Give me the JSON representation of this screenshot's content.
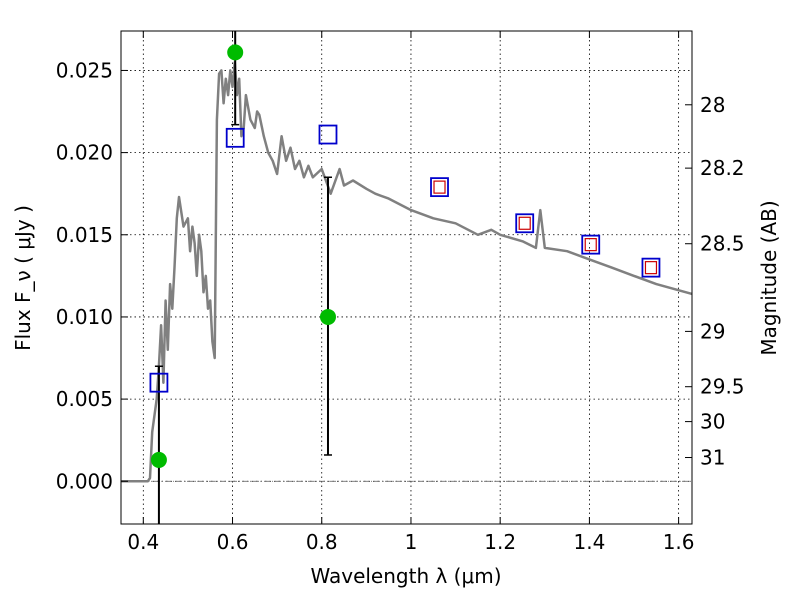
{
  "chart_data": {
    "type": "scatter",
    "xlabel": "Wavelength  λ (μm)",
    "ylabel": "Flux  F_ν  ( μJy )",
    "ylabel_right": "Magnitude (AB)",
    "xlim": [
      0.35,
      1.63
    ],
    "ylim": [
      -0.0026,
      0.0274
    ],
    "grid": true,
    "x_ticks": [
      {
        "v": 0.4,
        "label": "0.4"
      },
      {
        "v": 0.6,
        "label": "0.6"
      },
      {
        "v": 0.8,
        "label": "0.8"
      },
      {
        "v": 1.0,
        "label": "1"
      },
      {
        "v": 1.2,
        "label": "1.2"
      },
      {
        "v": 1.4,
        "label": "1.4"
      },
      {
        "v": 1.6,
        "label": "1.6"
      }
    ],
    "y_ticks": [
      {
        "v": 0.0,
        "label": "0.000"
      },
      {
        "v": 0.005,
        "label": "0.005"
      },
      {
        "v": 0.01,
        "label": "0.010"
      },
      {
        "v": 0.015,
        "label": "0.015"
      },
      {
        "v": 0.02,
        "label": "0.020"
      },
      {
        "v": 0.025,
        "label": "0.025"
      }
    ],
    "mag_ticks": [
      {
        "v": 28.0,
        "label": "28"
      },
      {
        "v": 28.2,
        "label": "28.2"
      },
      {
        "v": 28.5,
        "label": "28.5"
      },
      {
        "v": 29.0,
        "label": "29"
      },
      {
        "v": 29.5,
        "label": "29.5"
      },
      {
        "v": 30.0,
        "label": "30"
      },
      {
        "v": 31.0,
        "label": "31"
      }
    ],
    "colors": {
      "model": "#808080",
      "observed": "#00bb00",
      "model_band": "#0000cc",
      "model_band_inner": "#cc0000"
    },
    "model_spectrum": {
      "x": [
        0.35,
        0.41,
        0.415,
        0.42,
        0.43,
        0.435,
        0.44,
        0.445,
        0.45,
        0.455,
        0.46,
        0.465,
        0.47,
        0.475,
        0.48,
        0.49,
        0.5,
        0.505,
        0.51,
        0.515,
        0.52,
        0.525,
        0.53,
        0.535,
        0.54,
        0.545,
        0.55,
        0.555,
        0.56,
        0.565,
        0.57,
        0.575,
        0.58,
        0.585,
        0.59,
        0.595,
        0.6,
        0.605,
        0.61,
        0.615,
        0.62,
        0.625,
        0.63,
        0.64,
        0.65,
        0.655,
        0.66,
        0.67,
        0.68,
        0.69,
        0.7,
        0.71,
        0.72,
        0.73,
        0.74,
        0.75,
        0.76,
        0.77,
        0.78,
        0.8,
        0.82,
        0.84,
        0.85,
        0.87,
        0.9,
        0.92,
        0.95,
        1.0,
        1.05,
        1.1,
        1.15,
        1.18,
        1.2,
        1.25,
        1.28,
        1.29,
        1.3,
        1.35,
        1.4,
        1.45,
        1.5,
        1.55,
        1.63
      ],
      "y": [
        0.0,
        0.0,
        0.0002,
        0.003,
        0.005,
        0.007,
        0.0095,
        0.006,
        0.011,
        0.008,
        0.012,
        0.0105,
        0.013,
        0.016,
        0.0173,
        0.0155,
        0.016,
        0.014,
        0.0155,
        0.0145,
        0.0125,
        0.015,
        0.014,
        0.0115,
        0.0125,
        0.0105,
        0.011,
        0.0085,
        0.0075,
        0.022,
        0.0248,
        0.025,
        0.023,
        0.0245,
        0.0235,
        0.025,
        0.024,
        0.0255,
        0.0235,
        0.0245,
        0.021,
        0.0215,
        0.0235,
        0.022,
        0.0215,
        0.0225,
        0.0223,
        0.021,
        0.02,
        0.0195,
        0.0187,
        0.021,
        0.0195,
        0.0203,
        0.019,
        0.0195,
        0.0185,
        0.0192,
        0.0185,
        0.019,
        0.0175,
        0.019,
        0.018,
        0.0183,
        0.0178,
        0.0175,
        0.0172,
        0.0165,
        0.016,
        0.0157,
        0.015,
        0.0153,
        0.015,
        0.0146,
        0.0142,
        0.0165,
        0.0142,
        0.014,
        0.0135,
        0.013,
        0.0125,
        0.012,
        0.0114
      ]
    },
    "model_band_points": [
      {
        "x": 0.435,
        "y": 0.006,
        "inner": false
      },
      {
        "x": 0.606,
        "y": 0.0209,
        "inner": false
      },
      {
        "x": 0.814,
        "y": 0.0211,
        "inner": false
      },
      {
        "x": 1.064,
        "y": 0.0179,
        "inner": true
      },
      {
        "x": 1.255,
        "y": 0.0157,
        "inner": true
      },
      {
        "x": 1.403,
        "y": 0.0144,
        "inner": true
      },
      {
        "x": 1.538,
        "y": 0.013,
        "inner": true
      }
    ],
    "observed_points": [
      {
        "x": 0.435,
        "y": 0.0013,
        "yerr_low": 0.0043,
        "yerr_high": 0.0057
      },
      {
        "x": 0.606,
        "y": 0.0261,
        "yerr_low": 0.0044,
        "yerr_high": 0.0044
      },
      {
        "x": 0.814,
        "y": 0.01,
        "yerr_low": 0.0084,
        "yerr_high": 0.0085
      }
    ]
  }
}
